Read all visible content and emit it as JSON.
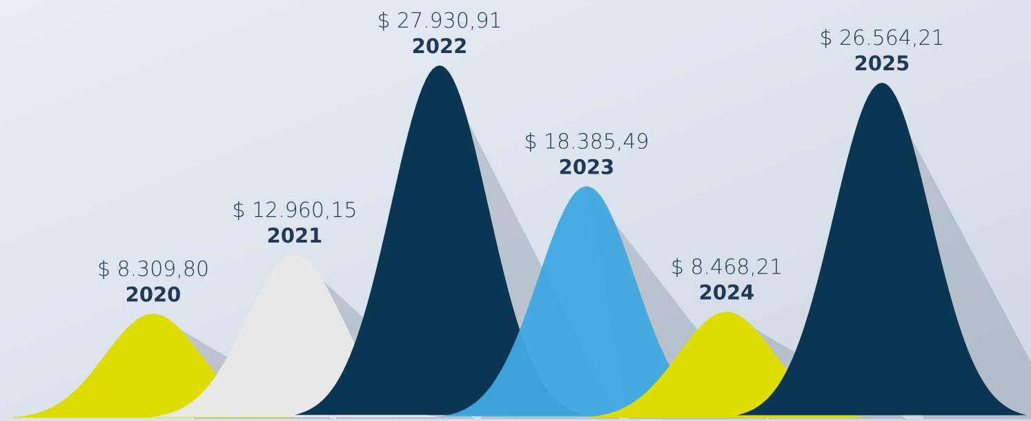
{
  "chart_data": {
    "type": "bell",
    "categories": [
      "2020",
      "2021",
      "2022",
      "2023",
      "2024",
      "2025"
    ],
    "values": [
      8309.8,
      12960.15,
      27930.91,
      18385.49,
      8468.21,
      26564.21
    ],
    "value_labels": [
      "$ 8.309,80",
      "$ 12.960,15",
      "$ 27.930,91",
      "$ 18.385,49",
      "$ 8.468,21",
      "$ 26.564,21"
    ],
    "colors": [
      "#dedd00",
      "#e8e8e8",
      "#0a3654",
      "#3fa9e0",
      "#dedd00",
      "#0a3654"
    ]
  }
}
